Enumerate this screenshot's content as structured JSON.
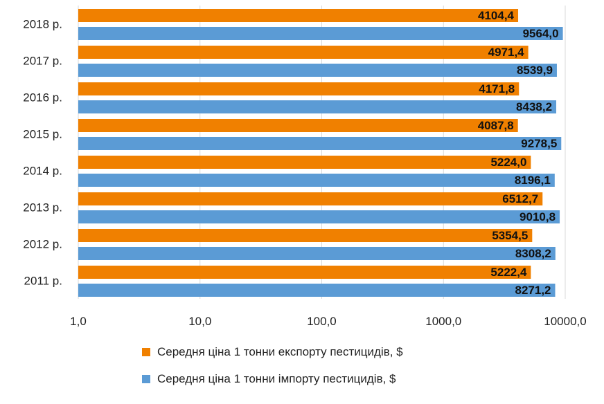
{
  "chart_data": {
    "type": "bar",
    "orientation": "horizontal",
    "x_scale": "log",
    "xlim": [
      1,
      10000
    ],
    "x_tick_labels": [
      "1,0",
      "10,0",
      "100,0",
      "1000,0",
      "10000,0"
    ],
    "categories": [
      "2018 р.",
      "2017 р.",
      "2016 р.",
      "2015 р.",
      "2014 р.",
      "2013 р.",
      "2012 р.",
      "2011 р."
    ],
    "series": [
      {
        "name": "Середня ціна 1 тонни експорту пестицидів, $",
        "color": "#F08000",
        "values": [
          4104.4,
          4971.4,
          4171.8,
          4087.8,
          5224.0,
          6512.7,
          5354.5,
          5222.4
        ],
        "labels": [
          "4104,4",
          "4971,4",
          "4171,8",
          "4087,8",
          "5224,0",
          "6512,7",
          "5354,5",
          "5222,4"
        ]
      },
      {
        "name": "Середня ціна 1 тонни імпорту пестицидів, $",
        "color": "#5B9BD5",
        "values": [
          9564.0,
          8539.9,
          8438.2,
          9278.5,
          8196.1,
          9010.8,
          8308.2,
          8271.2
        ],
        "labels": [
          "9564,0",
          "8539,9",
          "8438,2",
          "9278,5",
          "8196,1",
          "9010,8",
          "8308,2",
          "8271,2"
        ]
      }
    ],
    "gridlines": true,
    "legend_position": "bottom"
  }
}
